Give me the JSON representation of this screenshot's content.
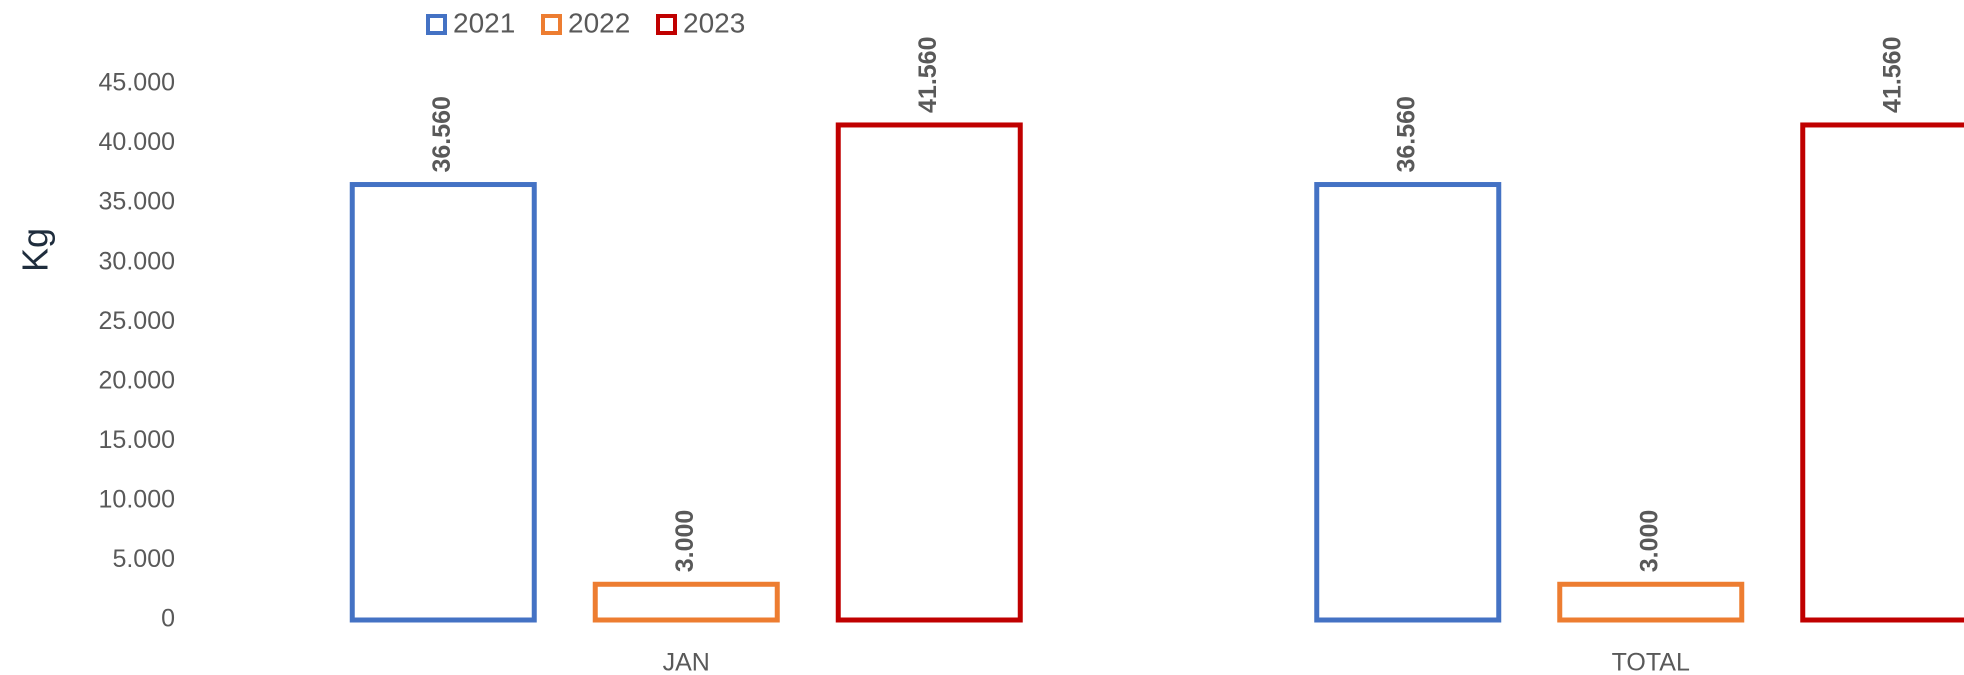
{
  "chart_data": {
    "type": "bar",
    "y_label": "Kg",
    "categories": [
      "JAN",
      "TOTAL"
    ],
    "series": [
      {
        "name": "2021",
        "color": "#4472c4",
        "values": [
          36560,
          36560
        ],
        "value_labels": [
          "36.560",
          "36.560"
        ]
      },
      {
        "name": "2022",
        "color": "#ed7d31",
        "values": [
          3000,
          3000
        ],
        "value_labels": [
          "3.000",
          "3.000"
        ]
      },
      {
        "name": "2023",
        "color": "#c00000",
        "values": [
          41560,
          41560
        ],
        "value_labels": [
          "41.560",
          "41.560"
        ]
      }
    ],
    "ylim": [
      0,
      45000
    ],
    "yticks": [
      0,
      {
        "value": 5000,
        "label": "5.000"
      },
      {
        "value": 10000,
        "label": "10.000"
      },
      {
        "value": 15000,
        "label": "15.000"
      },
      {
        "value": 20000,
        "label": "20.000"
      },
      {
        "value": 25000,
        "label": "25.000"
      },
      {
        "value": 30000,
        "label": "30.000"
      },
      {
        "value": 35000,
        "label": "35.000"
      },
      {
        "value": 40000,
        "label": "40.000"
      },
      {
        "value": 45000,
        "label": "45.000"
      }
    ],
    "legend": "top",
    "grid": false
  }
}
